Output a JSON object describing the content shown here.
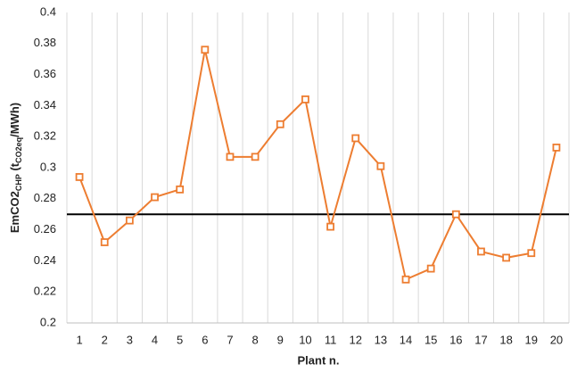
{
  "chart_data": {
    "type": "line",
    "x_label": "Plant n.",
    "y_label": [
      "EmCO2",
      "CHP",
      " (t",
      "CO2eq",
      "/MWh)"
    ],
    "categories": [
      1,
      2,
      3,
      4,
      5,
      6,
      7,
      8,
      9,
      10,
      11,
      12,
      13,
      14,
      15,
      16,
      17,
      18,
      19,
      20
    ],
    "series": [
      {
        "color": "#ed7d31",
        "values": [
          0.294,
          0.252,
          0.266,
          0.281,
          0.286,
          0.376,
          0.307,
          0.307,
          0.328,
          0.344,
          0.262,
          0.319,
          0.301,
          0.228,
          0.235,
          0.27,
          0.246,
          0.242,
          0.245,
          0.313
        ]
      }
    ],
    "reference_line": {
      "value": 0.27,
      "color": "#000000"
    },
    "ylim": [
      0.2,
      0.4
    ],
    "yticks": [
      0.2,
      0.22,
      0.24,
      0.26,
      0.28,
      0.3,
      0.32,
      0.34,
      0.36,
      0.38,
      0.4
    ]
  }
}
